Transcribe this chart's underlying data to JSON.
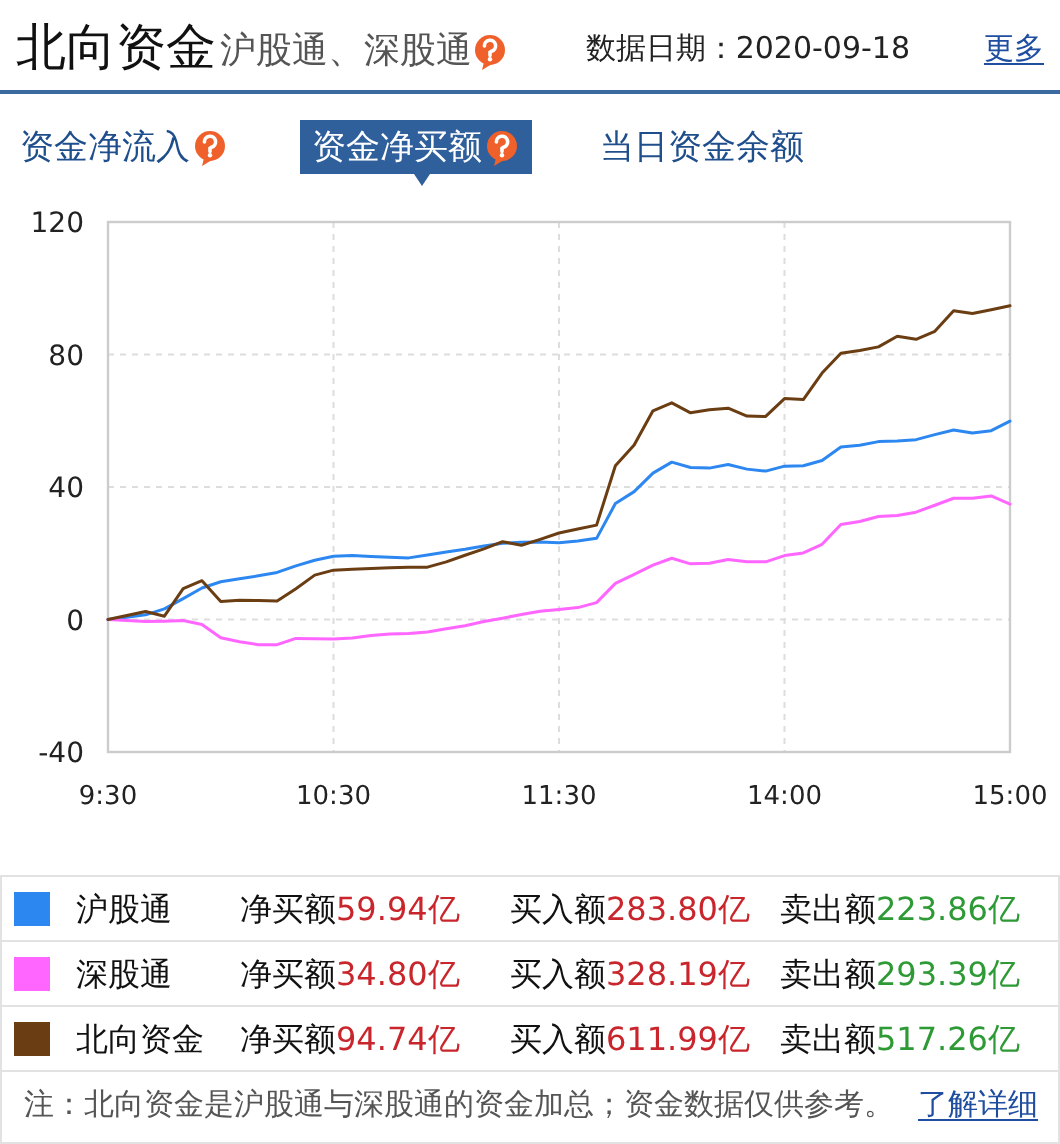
{
  "chart_data": {
    "type": "line",
    "title": "北向资金",
    "subtitle": "沪股通、深股通",
    "categories": [
      "9:30",
      null,
      null,
      null,
      null,
      null,
      null,
      null,
      null,
      null,
      null,
      null,
      "10:30",
      null,
      null,
      null,
      null,
      null,
      null,
      null,
      null,
      null,
      null,
      null,
      "11:30",
      null,
      null,
      null,
      null,
      null,
      null,
      null,
      null,
      null,
      null,
      null,
      "14:00",
      null,
      null,
      null,
      null,
      null,
      null,
      null,
      null,
      null,
      null,
      null,
      "15:00"
    ],
    "ylim": [
      -40,
      120
    ],
    "yticks": [
      -40,
      0,
      40,
      80,
      120
    ],
    "grid": true,
    "legend": "bottom",
    "marker": "none",
    "line_style": "solid",
    "series": [
      {
        "name": "沪股通",
        "color": "#2d87f0",
        "values": [
          0,
          0.7,
          1.4,
          3.2,
          6.3,
          9.5,
          11.4,
          12.3,
          13.2,
          14.2,
          16.2,
          17.9,
          19.1,
          19.3,
          19.0,
          18.8,
          18.6,
          19.5,
          20.4,
          21.2,
          22.2,
          23,
          23.3,
          23.4,
          23.2,
          23.7,
          24.5,
          35,
          38.6,
          44.2,
          47.5,
          45.9,
          45.7,
          46.8,
          45.4,
          44.8,
          46.3,
          46.4,
          48,
          52.1,
          52.6,
          53.7,
          53.9,
          54.3,
          55.8,
          57.2,
          56.3,
          57,
          59.9
        ]
      },
      {
        "name": "深股通",
        "color": "#ff66ff",
        "values": [
          0,
          -0.3,
          -0.6,
          -0.5,
          -0.3,
          -1.5,
          -5.5,
          -6.7,
          -7.6,
          -7.6,
          -5.7,
          -5.8,
          -5.9,
          -5.6,
          -4.8,
          -4.4,
          -4.2,
          -3.8,
          -2.8,
          -1.9,
          -0.6,
          0.4,
          1.5,
          2.5,
          3.0,
          3.6,
          5.1,
          10.9,
          13.6,
          16.4,
          18.5,
          16.8,
          17,
          18.1,
          17.4,
          17.4,
          19.3,
          20.1,
          22.7,
          28.7,
          29.6,
          31.1,
          31.4,
          32.4,
          34.5,
          36.6,
          36.6,
          37.3,
          34.8
        ]
      },
      {
        "name": "北向资金",
        "color": "#6b3d12",
        "values": [
          0,
          1.2,
          2.4,
          1,
          9.3,
          11.7,
          5.4,
          5.8,
          5.7,
          5.6,
          9.3,
          13.4,
          14.9,
          15.2,
          15.4,
          15.6,
          15.8,
          15.8,
          17.4,
          19.4,
          21.3,
          23.5,
          22.4,
          24.2,
          26.1,
          27.3,
          28.5,
          46.4,
          52.7,
          63,
          65.4,
          62.4,
          63.3,
          63.8,
          61.4,
          61.3,
          66.7,
          66.4,
          74.4,
          80.4,
          81.2,
          82.3,
          85.5,
          84.6,
          87,
          93.2,
          92.4,
          93.5,
          94.7
        ]
      }
    ],
    "annotations": [
      "数据日期：2020-09-18",
      "更多",
      "资金净流入",
      "资金净买额",
      "当日资金余额",
      "净买额59.94亿",
      "买入额283.80亿",
      "卖出额223.86亿",
      "净买额34.80亿",
      "买入额328.19亿",
      "卖出额293.39亿",
      "净买额94.74亿",
      "买入额611.99亿",
      "卖出额517.26亿",
      "注：北向资金是沪股通与深股通的资金加总；资金数据仅供参考。",
      "了解详细"
    ]
  }
}
